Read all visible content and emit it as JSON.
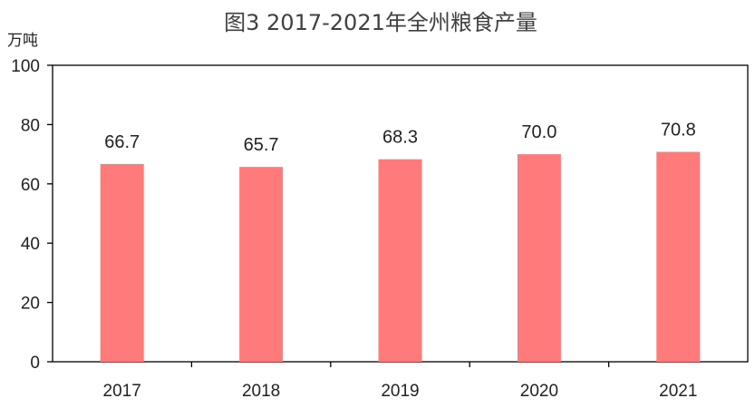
{
  "chart_data": {
    "type": "bar",
    "title": "图3  2017-2021年全州粮食产量",
    "ylabel": "万吨",
    "xlabel": "",
    "categories": [
      "2017",
      "2018",
      "2019",
      "2020",
      "2021"
    ],
    "values": [
      66.7,
      65.7,
      68.3,
      70.0,
      70.8
    ],
    "value_labels": [
      "66.7",
      "65.7",
      "68.3",
      "70.0",
      "70.8"
    ],
    "ylim": [
      0,
      100
    ],
    "yticks": [
      0,
      20,
      40,
      60,
      80,
      100
    ],
    "ytick_labels": [
      "0",
      "20",
      "40",
      "60",
      "80",
      "100"
    ],
    "grid": false,
    "legend": "none",
    "bar_color": "#FF7B7B",
    "axis_color": "#000000"
  }
}
